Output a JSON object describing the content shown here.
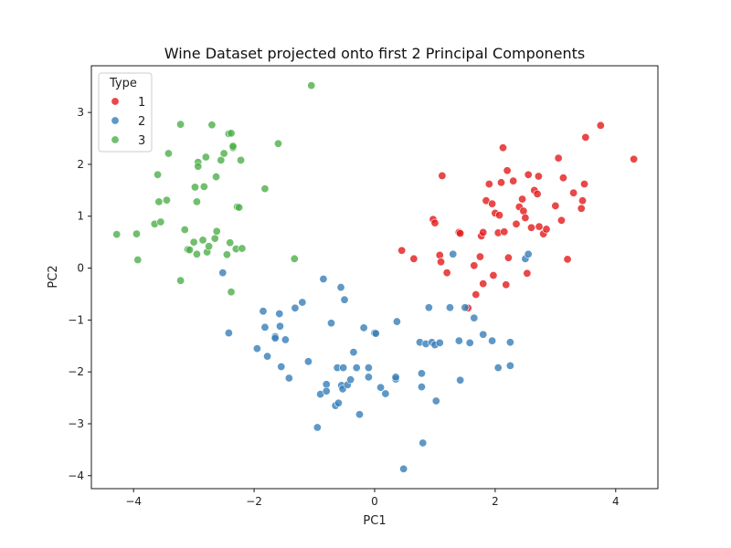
{
  "chart_data": {
    "type": "scatter",
    "title": "Wine Dataset projected onto first 2 Principal Components",
    "xlabel": "PC1",
    "ylabel": "PC2",
    "xlim": [
      -4.7,
      4.7
    ],
    "ylim": [
      -4.25,
      3.9
    ],
    "xticks": [
      -4,
      -2,
      0,
      2,
      4
    ],
    "yticks": [
      -4,
      -3,
      -2,
      -1,
      0,
      1,
      2,
      3
    ],
    "grid": false,
    "legend": {
      "title": "Type",
      "position": "top-left"
    },
    "series": [
      {
        "name": "1",
        "color": "#e41a1c",
        "points": [
          [
            0.45,
            0.34
          ],
          [
            0.65,
            0.18
          ],
          [
            0.97,
            0.94
          ],
          [
            1.0,
            0.87
          ],
          [
            1.08,
            0.25
          ],
          [
            1.1,
            0.12
          ],
          [
            1.12,
            1.78
          ],
          [
            1.2,
            -0.09
          ],
          [
            1.4,
            0.69
          ],
          [
            1.42,
            0.67
          ],
          [
            1.55,
            -0.77
          ],
          [
            1.65,
            0.05
          ],
          [
            1.68,
            -0.51
          ],
          [
            1.75,
            0.22
          ],
          [
            1.77,
            0.62
          ],
          [
            1.8,
            0.69
          ],
          [
            1.8,
            -0.3
          ],
          [
            1.85,
            1.3
          ],
          [
            1.9,
            1.62
          ],
          [
            1.95,
            1.24
          ],
          [
            1.97,
            -0.14
          ],
          [
            2.0,
            1.06
          ],
          [
            2.05,
            0.68
          ],
          [
            2.07,
            1.02
          ],
          [
            2.1,
            1.65
          ],
          [
            2.13,
            2.32
          ],
          [
            2.15,
            0.7
          ],
          [
            2.18,
            -0.32
          ],
          [
            2.2,
            1.88
          ],
          [
            2.22,
            0.2
          ],
          [
            2.3,
            1.68
          ],
          [
            2.35,
            0.85
          ],
          [
            2.4,
            1.18
          ],
          [
            2.45,
            1.33
          ],
          [
            2.47,
            1.1
          ],
          [
            2.5,
            0.97
          ],
          [
            2.53,
            -0.1
          ],
          [
            2.55,
            1.8
          ],
          [
            2.6,
            0.78
          ],
          [
            2.65,
            1.5
          ],
          [
            2.7,
            1.43
          ],
          [
            2.72,
            1.77
          ],
          [
            2.73,
            0.8
          ],
          [
            2.8,
            0.66
          ],
          [
            2.85,
            0.75
          ],
          [
            3.0,
            1.2
          ],
          [
            3.05,
            2.12
          ],
          [
            3.1,
            0.92
          ],
          [
            3.13,
            1.74
          ],
          [
            3.2,
            0.17
          ],
          [
            3.3,
            1.45
          ],
          [
            3.43,
            1.15
          ],
          [
            3.45,
            1.3
          ],
          [
            3.5,
            2.52
          ],
          [
            3.48,
            1.62
          ],
          [
            3.75,
            2.75
          ],
          [
            4.3,
            2.1
          ]
        ]
      },
      {
        "name": "2",
        "color": "#377eb8",
        "points": [
          [
            -2.52,
            -0.09
          ],
          [
            -2.42,
            -1.25
          ],
          [
            -1.95,
            -1.55
          ],
          [
            -1.85,
            -0.83
          ],
          [
            -1.82,
            -1.14
          ],
          [
            -1.78,
            -1.7
          ],
          [
            -1.65,
            -1.32
          ],
          [
            -1.65,
            -1.35
          ],
          [
            -1.57,
            -1.12
          ],
          [
            -1.58,
            -0.88
          ],
          [
            -1.55,
            -1.9
          ],
          [
            -1.48,
            -1.38
          ],
          [
            -1.42,
            -2.12
          ],
          [
            -1.32,
            -0.77
          ],
          [
            -1.2,
            -0.66
          ],
          [
            -1.1,
            -1.8
          ],
          [
            -0.95,
            -3.07
          ],
          [
            -0.9,
            -2.43
          ],
          [
            -0.85,
            -0.21
          ],
          [
            -0.8,
            -2.24
          ],
          [
            -0.8,
            -2.37
          ],
          [
            -0.72,
            -1.06
          ],
          [
            -0.65,
            -2.65
          ],
          [
            -0.62,
            -1.92
          ],
          [
            -0.6,
            -2.6
          ],
          [
            -0.56,
            -0.37
          ],
          [
            -0.55,
            -2.26
          ],
          [
            -0.53,
            -2.33
          ],
          [
            -0.5,
            -0.61
          ],
          [
            -0.52,
            -1.92
          ],
          [
            -0.45,
            -2.25
          ],
          [
            -0.4,
            -2.15
          ],
          [
            -0.35,
            -1.62
          ],
          [
            -0.3,
            -1.92
          ],
          [
            -0.25,
            -2.82
          ],
          [
            -0.18,
            -1.15
          ],
          [
            -0.1,
            -2.1
          ],
          [
            -0.1,
            -1.92
          ],
          [
            0.0,
            -1.25
          ],
          [
            0.02,
            -1.26
          ],
          [
            0.1,
            -2.3
          ],
          [
            0.18,
            -2.42
          ],
          [
            0.35,
            -2.14
          ],
          [
            0.37,
            -1.03
          ],
          [
            0.35,
            -2.1
          ],
          [
            0.48,
            -3.87
          ],
          [
            0.75,
            -1.43
          ],
          [
            0.78,
            -2.03
          ],
          [
            0.78,
            -2.29
          ],
          [
            0.8,
            -3.37
          ],
          [
            0.85,
            -1.46
          ],
          [
            0.9,
            -0.76
          ],
          [
            0.95,
            -1.43
          ],
          [
            1.0,
            -1.48
          ],
          [
            1.02,
            -2.56
          ],
          [
            1.08,
            -1.44
          ],
          [
            1.25,
            -0.76
          ],
          [
            1.3,
            0.27
          ],
          [
            1.4,
            -1.4
          ],
          [
            1.42,
            -2.16
          ],
          [
            1.5,
            -0.76
          ],
          [
            1.58,
            -1.44
          ],
          [
            1.65,
            -0.96
          ],
          [
            1.8,
            -1.28
          ],
          [
            1.95,
            -1.4
          ],
          [
            2.05,
            -1.92
          ],
          [
            2.25,
            -1.43
          ],
          [
            2.25,
            -1.88
          ],
          [
            2.5,
            0.18
          ],
          [
            2.55,
            0.27
          ]
        ]
      },
      {
        "name": "3",
        "color": "#4daf4a",
        "points": [
          [
            -4.28,
            0.65
          ],
          [
            -3.95,
            0.66
          ],
          [
            -3.93,
            0.16
          ],
          [
            -3.65,
            0.85
          ],
          [
            -3.6,
            1.8
          ],
          [
            -3.58,
            1.28
          ],
          [
            -3.55,
            0.89
          ],
          [
            -3.45,
            1.31
          ],
          [
            -3.42,
            2.21
          ],
          [
            -3.22,
            -0.24
          ],
          [
            -3.22,
            2.77
          ],
          [
            -3.15,
            0.74
          ],
          [
            -3.1,
            0.36
          ],
          [
            -3.07,
            0.35
          ],
          [
            -3.0,
            0.5
          ],
          [
            -2.98,
            1.56
          ],
          [
            -2.95,
            1.28
          ],
          [
            -2.95,
            0.27
          ],
          [
            -2.93,
            2.04
          ],
          [
            -2.93,
            1.96
          ],
          [
            -2.85,
            0.54
          ],
          [
            -2.83,
            1.57
          ],
          [
            -2.8,
            2.14
          ],
          [
            -2.78,
            0.31
          ],
          [
            -2.75,
            0.42
          ],
          [
            -2.7,
            2.76
          ],
          [
            -2.65,
            0.57
          ],
          [
            -2.63,
            1.76
          ],
          [
            -2.62,
            0.71
          ],
          [
            -2.55,
            2.08
          ],
          [
            -2.5,
            2.21
          ],
          [
            -2.45,
            0.26
          ],
          [
            -2.42,
            2.59
          ],
          [
            -2.38,
            2.6
          ],
          [
            -2.38,
            -0.46
          ],
          [
            -2.4,
            0.49
          ],
          [
            -2.35,
            2.32
          ],
          [
            -2.35,
            2.35
          ],
          [
            -2.3,
            0.37
          ],
          [
            -2.28,
            1.18
          ],
          [
            -2.25,
            1.17
          ],
          [
            -2.22,
            2.08
          ],
          [
            -2.2,
            0.38
          ],
          [
            -1.6,
            2.4
          ],
          [
            -1.82,
            1.53
          ],
          [
            -1.33,
            0.18
          ],
          [
            -1.05,
            3.52
          ]
        ]
      }
    ]
  }
}
